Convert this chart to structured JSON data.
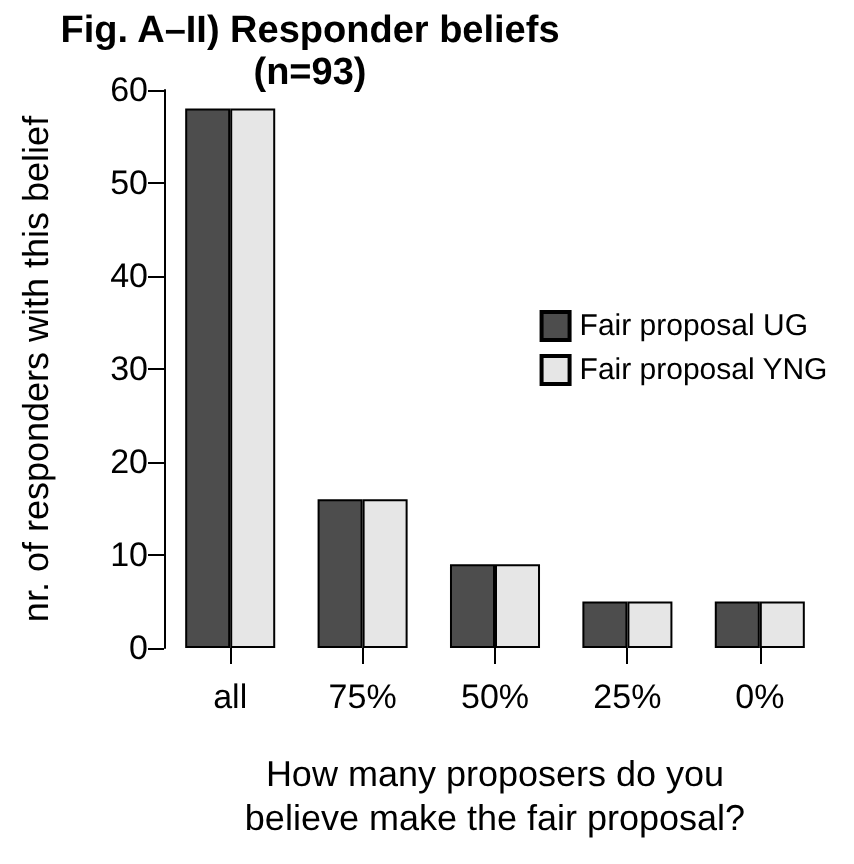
{
  "chart_data": {
    "type": "bar",
    "title": "Fig. A–II) Responder beliefs\n(n=93)",
    "xlabel": "How many proposers do you\nbelieve make the fair proposal?",
    "ylabel": "nr. of responders with this belief",
    "categories": [
      "all",
      "75%",
      "50%",
      "25%",
      "0%"
    ],
    "series": [
      {
        "name": "Fair proposal UG",
        "color": "#4d4d4d",
        "values": [
          58,
          16,
          9,
          5,
          5
        ]
      },
      {
        "name": "Fair proposal YNG",
        "color": "#e6e6e6",
        "values": [
          58,
          16,
          9,
          5,
          5
        ]
      }
    ],
    "ylim": [
      0,
      60
    ],
    "yticks": [
      0,
      10,
      20,
      30,
      40,
      50,
      60
    ],
    "grid": false,
    "legend": "right"
  }
}
